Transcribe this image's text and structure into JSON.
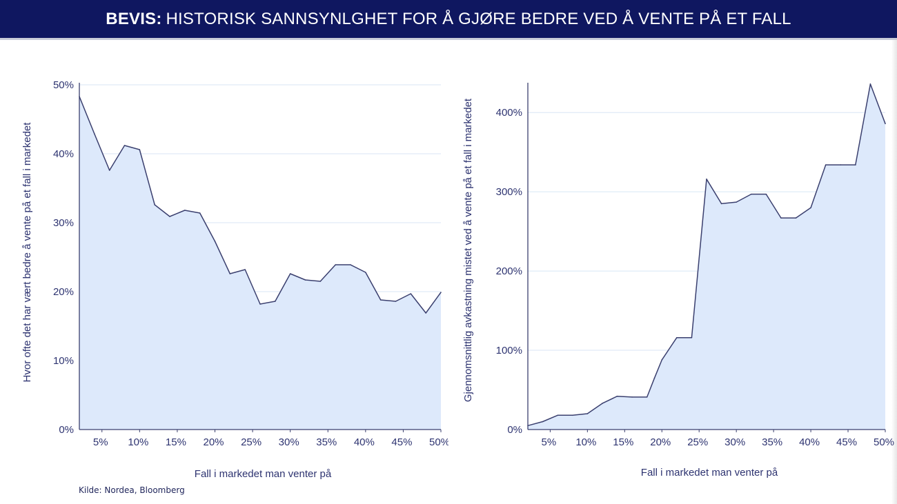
{
  "header": {
    "bold": "BEVIS:",
    "text": "HISTORISK SANNSYNLGHET FOR Å GJØRE BEDRE VED Å VENTE PÅ ET FALL"
  },
  "source": "Kilde: Nordea, Bloomberg",
  "colors": {
    "header_bg": "#0f1760",
    "line": "#3a3f6e",
    "fill": "#dde9fb",
    "text": "#2d3370",
    "grid": "#d8e6f5"
  },
  "chart_data": [
    {
      "type": "area",
      "xlabel": "Fall i markedet man venter på",
      "ylabel": "Hvor ofte det har vært bedre å vente på et fall i markedet",
      "xlim": [
        2,
        50
      ],
      "ylim": [
        0,
        50
      ],
      "xticks": [
        5,
        10,
        15,
        20,
        25,
        30,
        35,
        40,
        45,
        50
      ],
      "xtick_labels": [
        "5%",
        "10%",
        "15%",
        "20%",
        "25%",
        "30%",
        "35%",
        "40%",
        "45%",
        "50%"
      ],
      "yticks": [
        0,
        10,
        20,
        30,
        40,
        50
      ],
      "ytick_labels": [
        "0%",
        "10%",
        "20%",
        "30%",
        "40%",
        "50%"
      ],
      "grid": "horizontal",
      "x": [
        2,
        4,
        6,
        8,
        10,
        12,
        14,
        16,
        18,
        20,
        22,
        24,
        26,
        28,
        30,
        32,
        34,
        36,
        38,
        40,
        42,
        44,
        46,
        48,
        50
      ],
      "y": [
        48.3,
        42.9,
        37.6,
        41.2,
        40.6,
        32.6,
        30.9,
        31.8,
        31.4,
        27.3,
        22.6,
        23.2,
        18.2,
        18.6,
        22.6,
        21.7,
        21.5,
        23.9,
        23.9,
        22.8,
        18.8,
        18.6,
        19.7,
        16.9,
        19.9
      ]
    },
    {
      "type": "area",
      "xlabel": "Fall i markedet man venter på",
      "ylabel": "Gjennomsnittlig avkastning mistet ved å vente på et fall i markedet",
      "xlim": [
        2,
        50
      ],
      "ylim": [
        0,
        435
      ],
      "xticks": [
        5,
        10,
        15,
        20,
        25,
        30,
        35,
        40,
        45,
        50
      ],
      "xtick_labels": [
        "5%",
        "10%",
        "15%",
        "20%",
        "25%",
        "30%",
        "35%",
        "40%",
        "45%",
        "50%"
      ],
      "yticks": [
        0,
        100,
        200,
        300,
        400
      ],
      "ytick_labels": [
        "0%",
        "100%",
        "200%",
        "300%",
        "400%"
      ],
      "grid": "horizontal",
      "x": [
        2,
        4,
        6,
        8,
        10,
        12,
        14,
        16,
        18,
        19,
        20,
        22,
        24,
        26,
        28,
        30,
        32,
        34,
        36,
        38,
        40,
        42,
        44,
        46,
        48,
        50
      ],
      "y": [
        5,
        10,
        18,
        18,
        20,
        33,
        42,
        41,
        41,
        65,
        88,
        116,
        116,
        316,
        285,
        287,
        297,
        297,
        267,
        267,
        280,
        334,
        334,
        334,
        436,
        386
      ]
    }
  ]
}
